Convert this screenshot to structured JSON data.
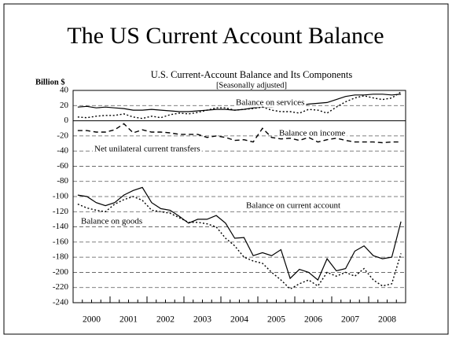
{
  "slide_title": "The US Current Account Balance",
  "chart_data": {
    "type": "line",
    "title": "U.S. Current-Account Balance and Its Components",
    "subtitle": "[Seasonally adjusted]",
    "y_label": "Billion $",
    "categories": [
      "2000",
      null,
      null,
      null,
      "2001",
      null,
      null,
      null,
      "2002",
      null,
      null,
      null,
      "2003",
      null,
      null,
      null,
      "2004",
      null,
      null,
      null,
      "2005",
      null,
      null,
      null,
      "2006",
      null,
      null,
      null,
      "2007",
      null,
      null,
      null,
      "2008",
      null,
      null,
      null
    ],
    "ylim": [
      -240,
      40
    ],
    "yticks": [
      40,
      20,
      0,
      -20,
      -40,
      -60,
      -80,
      -100,
      -120,
      -140,
      -160,
      -180,
      -200,
      -220,
      -240
    ],
    "grid": true,
    "series": [
      {
        "name": "Balance on services",
        "color": "#000000",
        "style": "solid",
        "values": [
          18,
          19,
          17,
          18,
          17,
          16,
          14,
          14,
          15,
          14,
          13,
          12,
          12,
          13,
          14,
          15,
          15,
          14,
          15,
          17,
          18,
          18,
          19,
          19,
          20,
          22,
          23,
          24,
          28,
          32,
          34,
          34,
          35,
          35,
          34,
          35
        ]
      },
      {
        "name": "Balance on income",
        "color": "#000000",
        "style": "dotted",
        "values": [
          5,
          4,
          6,
          7,
          7,
          9,
          5,
          3,
          6,
          4,
          8,
          10,
          9,
          11,
          14,
          17,
          17,
          14,
          15,
          16,
          18,
          14,
          12,
          12,
          10,
          15,
          14,
          10,
          18,
          25,
          30,
          33,
          30,
          28,
          30,
          38
        ]
      },
      {
        "name": "Net unilateral current transfers",
        "color": "#000000",
        "style": "dashed",
        "values": [
          -13,
          -13,
          -15,
          -15,
          -12,
          -4,
          -16,
          -12,
          -15,
          -15,
          -16,
          -18,
          -18,
          -18,
          -22,
          -20,
          -22,
          -26,
          -25,
          -28,
          -10,
          -22,
          -24,
          -23,
          -26,
          -22,
          -28,
          -25,
          -23,
          -26,
          -28,
          -28,
          -28,
          -29,
          -28,
          -28
        ]
      },
      {
        "name": "Balance on current account",
        "color": "#000000",
        "style": "solid",
        "values": [
          -98,
          -100,
          -108,
          -112,
          -108,
          -98,
          -92,
          -88,
          -108,
          -116,
          -118,
          -126,
          -135,
          -130,
          -130,
          -125,
          -135,
          -155,
          -154,
          -178,
          -174,
          -178,
          -170,
          -208,
          -196,
          -200,
          -210,
          -182,
          -198,
          -195,
          -172,
          -165,
          -178,
          -182,
          -180,
          -133
        ]
      },
      {
        "name": "Balance on goods",
        "color": "#000000",
        "style": "dotted",
        "values": [
          -110,
          -115,
          -118,
          -120,
          -110,
          -104,
          -100,
          -105,
          -118,
          -120,
          -122,
          -128,
          -134,
          -134,
          -136,
          -140,
          -155,
          -165,
          -180,
          -185,
          -188,
          -200,
          -210,
          -222,
          -215,
          -210,
          -218,
          -200,
          -205,
          -200,
          -205,
          -195,
          -210,
          -218,
          -215,
          -175
        ]
      }
    ]
  }
}
